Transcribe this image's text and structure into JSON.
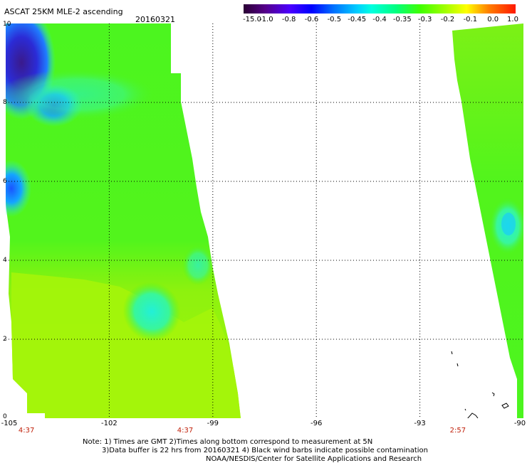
{
  "header": {
    "product": "ASCAT 25KM MLE-2 ascending",
    "date": "20160321"
  },
  "colorbar": {
    "labels": [
      "-15.0",
      "-1.0",
      "-0.8",
      "-0.6",
      "-0.5",
      "-0.45",
      "-0.4",
      "-0.35",
      "-0.3",
      "-0.2",
      "-0.1",
      "0.0",
      "1.0"
    ],
    "colors": [
      "#2a0033",
      "#55008a",
      "#5a00ff",
      "#0000ff",
      "#0070ff",
      "#00d0ff",
      "#00ffe0",
      "#00ff80",
      "#40ff00",
      "#a0ff00",
      "#ffe000",
      "#ff8000",
      "#ff2000"
    ]
  },
  "map": {
    "lon_range": [
      -105,
      -90
    ],
    "lat_range": [
      0,
      10
    ],
    "lon_ticks": [
      "-105",
      "-102",
      "-99",
      "-96",
      "-93",
      "-90"
    ],
    "lat_ticks": [
      "0",
      "2",
      "4",
      "6",
      "8",
      "10"
    ],
    "pass_times": [
      {
        "lon": -104.4,
        "label": "4:37"
      },
      {
        "lon": -99.8,
        "label": "4:37"
      },
      {
        "lon": -91.9,
        "label": "2:57"
      }
    ],
    "gridlines": true,
    "colors": {
      "field_green": "#4cf51f",
      "field_yellow": "#a4f50a",
      "field_cyan": "#2ef4c8",
      "field_blue": "#1a55ff",
      "field_purple": "#3a1a8c"
    }
  },
  "footer": {
    "line1": "Note: 1) Times are GMT 2)Times along bottom correspond to measurement at 5N",
    "line2": "3)Data buffer is 22 hrs from 20160321 4) Black wind barbs indicate possible contamination",
    "line3": "NOAA/NESDIS/Center for Satellite Applications and Research"
  }
}
